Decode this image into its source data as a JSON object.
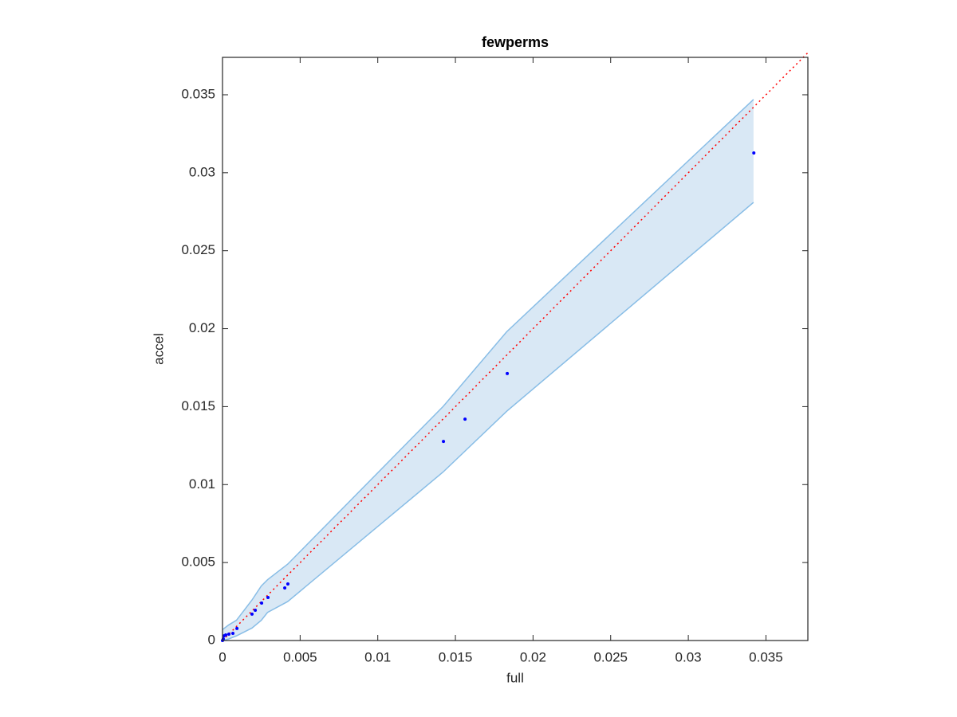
{
  "chart_data": {
    "type": "scatter",
    "title": "fewperms",
    "xlabel": "full",
    "ylabel": "accel",
    "xlim": [
      0,
      0.0377
    ],
    "ylim": [
      0,
      0.0374
    ],
    "xticks": [
      0,
      0.005,
      0.01,
      0.015,
      0.02,
      0.025,
      0.03,
      0.035
    ],
    "yticks": [
      0,
      0.005,
      0.01,
      0.015,
      0.02,
      0.025,
      0.03,
      0.035
    ],
    "band": {
      "color": "#d9e8f5",
      "edge_color": "#88bde6",
      "x": [
        0,
        0.0004,
        0.0009,
        0.0019,
        0.0025,
        0.0029,
        0.0042,
        0.0142,
        0.0183,
        0.0342
      ],
      "upper": [
        0.0007,
        0.001,
        0.0013,
        0.0026,
        0.0035,
        0.0039,
        0.0049,
        0.015,
        0.0198,
        0.0347
      ],
      "lower": [
        0,
        0.0001,
        0.0003,
        0.0008,
        0.0013,
        0.0018,
        0.0025,
        0.0108,
        0.0147,
        0.0281
      ]
    },
    "reference_line": {
      "color": "#ff0000",
      "style": "dotted",
      "x": [
        0,
        0.0377
      ],
      "values": [
        0,
        0.0377
      ]
    },
    "series": [
      {
        "color": "#0000ff",
        "x": [
          0,
          5e-05,
          0.0001,
          0.00021,
          0.00041,
          0.00067,
          0.00093,
          0.0019,
          0.00211,
          0.00252,
          0.00293,
          0.00401,
          0.00421,
          0.01423,
          0.01562,
          0.01834,
          0.03422
        ],
        "values": [
          0,
          0.0001,
          0.0003,
          0.00036,
          0.00041,
          0.00046,
          0.00077,
          0.00169,
          0.00194,
          0.0024,
          0.00276,
          0.00337,
          0.00363,
          0.01277,
          0.0142,
          0.01712,
          0.03127
        ]
      }
    ]
  }
}
